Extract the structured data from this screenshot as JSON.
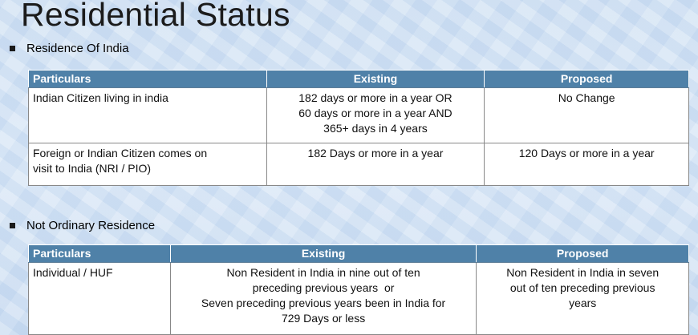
{
  "title": "Residential Status",
  "sections": [
    {
      "heading": "Residence Of India",
      "headers": [
        "Particulars",
        "Existing",
        "Proposed"
      ],
      "rows": [
        {
          "particulars": "Indian Citizen living in india",
          "existing": [
            "182 days or more in a year OR",
            "60 days or more in a year AND",
            "365+ days in 4 years"
          ],
          "proposed": [
            "No Change"
          ]
        },
        {
          "particulars": [
            "Foreign or Indian Citizen comes on",
            "visit to India (NRI / PIO)"
          ],
          "existing": [
            "182 Days or more in a year"
          ],
          "proposed": [
            "120 Days or more in a year"
          ]
        }
      ]
    },
    {
      "heading": "Not Ordinary Residence",
      "headers": [
        "Particulars",
        "Existing",
        "Proposed"
      ],
      "rows": [
        {
          "particulars": "Individual / HUF",
          "existing": [
            "Non Resident in India in nine out of ten",
            "preceding previous years  or",
            "Seven preceding previous years been in India for",
            "729 Days or less"
          ],
          "proposed": [
            "Non Resident in India in seven",
            "out of ten preceding previous",
            "years"
          ]
        }
      ]
    }
  ]
}
